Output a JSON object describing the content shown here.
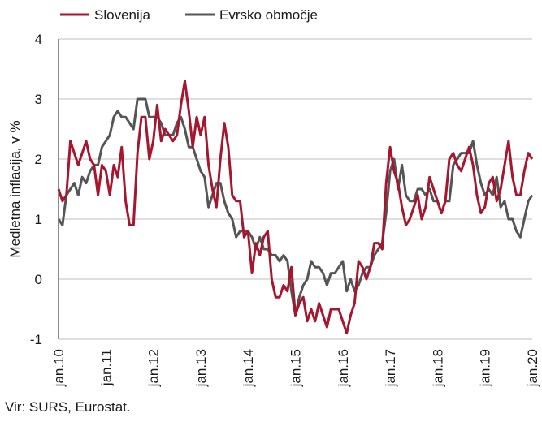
{
  "chart_data": {
    "type": "line",
    "ylabel": "Medletna inflacija, v %",
    "ylim": [
      -1,
      4
    ],
    "yticks": [
      "-1",
      "0",
      "1",
      "2",
      "3",
      "4"
    ],
    "xticks": [
      "jan.10",
      "jan.11",
      "jan.12",
      "jan.13",
      "jan.14",
      "jan.15",
      "jan.16",
      "jan.17",
      "jan.18",
      "jan.19",
      "jan.20"
    ],
    "x_start": "jan.10",
    "x_frequency": "monthly",
    "grid": true,
    "legend_position": "top-left",
    "series": [
      {
        "name": "Slovenija",
        "color": "#a6162e",
        "values": [
          1.5,
          1.3,
          1.4,
          2.3,
          2.1,
          1.9,
          2.1,
          2.3,
          2.0,
          1.9,
          1.4,
          1.9,
          1.8,
          1.4,
          1.9,
          1.7,
          2.2,
          1.3,
          0.9,
          0.9,
          2.1,
          2.7,
          2.7,
          2.0,
          2.3,
          2.9,
          2.3,
          2.5,
          2.4,
          2.3,
          2.4,
          2.9,
          3.3,
          2.8,
          2.2,
          2.7,
          2.4,
          2.7,
          1.9,
          1.5,
          1.2,
          2.0,
          2.6,
          2.2,
          1.4,
          1.3,
          1.3,
          0.7,
          0.8,
          0.1,
          0.6,
          0.4,
          0.7,
          0.8,
          0.0,
          -0.3,
          -0.3,
          -0.1,
          -0.2,
          0.2,
          -0.6,
          -0.4,
          -0.3,
          -0.7,
          -0.5,
          -0.7,
          -0.4,
          -0.6,
          -0.8,
          -0.5,
          -0.5,
          -0.5,
          -0.7,
          -0.9,
          -0.6,
          -0.4,
          0.3,
          0.2,
          0.0,
          0.2,
          0.6,
          0.6,
          0.5,
          1.6,
          2.2,
          1.8,
          1.6,
          1.2,
          0.9,
          1.0,
          1.2,
          1.4,
          1.0,
          1.2,
          1.7,
          1.5,
          1.3,
          1.1,
          1.3,
          2.0,
          2.1,
          1.9,
          1.8,
          2.0,
          2.2,
          1.9,
          1.4,
          1.1,
          1.2,
          1.6,
          1.7,
          1.3,
          1.5,
          1.9,
          2.3,
          1.7,
          1.4,
          1.4,
          1.8,
          2.1,
          2.0
        ]
      },
      {
        "name": "Evrsko območje",
        "color": "#555555",
        "values": [
          1.0,
          0.9,
          1.4,
          1.5,
          1.6,
          1.4,
          1.7,
          1.6,
          1.8,
          1.9,
          1.9,
          2.2,
          2.3,
          2.4,
          2.7,
          2.8,
          2.7,
          2.7,
          2.6,
          2.5,
          3.0,
          3.0,
          3.0,
          2.7,
          2.7,
          2.7,
          2.6,
          2.4,
          2.4,
          2.4,
          2.6,
          2.7,
          2.5,
          2.2,
          2.2,
          2.0,
          1.8,
          1.7,
          1.2,
          1.4,
          1.6,
          1.6,
          1.3,
          1.1,
          1.0,
          0.7,
          0.8,
          0.8,
          0.8,
          0.7,
          0.5,
          0.7,
          0.5,
          0.5,
          0.4,
          0.4,
          0.3,
          0.4,
          0.3,
          -0.2,
          -0.6,
          -0.3,
          -0.1,
          0.0,
          0.3,
          0.2,
          0.2,
          0.1,
          -0.1,
          0.1,
          0.1,
          0.2,
          0.3,
          -0.2,
          0.0,
          -0.2,
          -0.1,
          0.1,
          0.2,
          0.2,
          0.4,
          0.5,
          0.6,
          1.1,
          1.8,
          2.0,
          1.5,
          1.9,
          1.4,
          1.3,
          1.3,
          1.5,
          1.5,
          1.4,
          1.5,
          1.3,
          1.3,
          1.1,
          1.3,
          1.3,
          1.9,
          2.0,
          2.1,
          2.1,
          2.1,
          2.3,
          1.9,
          1.6,
          1.4,
          1.5,
          1.4,
          1.7,
          1.2,
          1.3,
          1.0,
          1.0,
          0.8,
          0.7,
          1.0,
          1.3,
          1.4
        ]
      }
    ]
  },
  "source": "Vir: SURS, Eurostat."
}
